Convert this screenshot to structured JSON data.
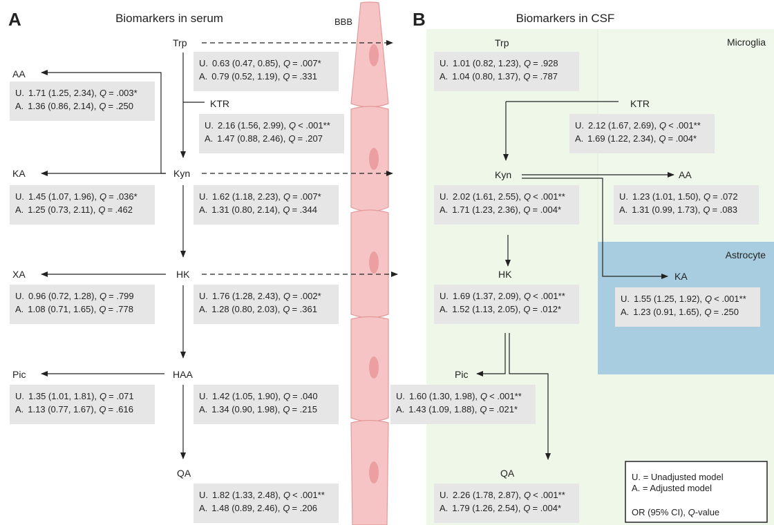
{
  "panel_a": {
    "letter": "A",
    "title": "Biomarkers in serum",
    "barrier": "BBB",
    "nodes": [
      {
        "label": "Trp",
        "stats": [
          {
            "model": "U.",
            "estimate": "0.63 (0.47, 0.85),",
            "q_symbol": "Q",
            "q": "= .007*"
          },
          {
            "model": "A.",
            "estimate": "0.79 (0.52, 1.19),",
            "q_symbol": "Q",
            "q": "= .331"
          }
        ]
      },
      {
        "label": "AA",
        "stats": [
          {
            "model": "U.",
            "estimate": "1.71 (1.25, 2.34),",
            "q_symbol": "Q",
            "q": "= .003*"
          },
          {
            "model": "A.",
            "estimate": "1.36 (0.86, 2.14),",
            "q_symbol": "Q",
            "q": "= .250"
          }
        ]
      },
      {
        "label": "KTR",
        "stats": [
          {
            "model": "U.",
            "estimate": "2.16 (1.56, 2.99),",
            "q_symbol": "Q",
            "q": "< .001**"
          },
          {
            "model": "A.",
            "estimate": "1.47 (0.88, 2.46),",
            "q_symbol": "Q",
            "q": "= .207"
          }
        ]
      },
      {
        "label": "Kyn",
        "stats": [
          {
            "model": "U.",
            "estimate": "1.62 (1.18, 2.23),",
            "q_symbol": "Q",
            "q": "= .007*"
          },
          {
            "model": "A.",
            "estimate": "1.31 (0.80, 2.14),",
            "q_symbol": "Q",
            "q": "= .344"
          }
        ]
      },
      {
        "label": "KA",
        "stats": [
          {
            "model": "U.",
            "estimate": "1.45 (1.07, 1.96),",
            "q_symbol": "Q",
            "q": "= .036*"
          },
          {
            "model": "A.",
            "estimate": "1.25 (0.73, 2.11),",
            "q_symbol": "Q",
            "q": "= .462"
          }
        ]
      },
      {
        "label": "HK",
        "stats": [
          {
            "model": "U.",
            "estimate": "1.76 (1.28, 2.43),",
            "q_symbol": "Q",
            "q": "= .002*"
          },
          {
            "model": "A.",
            "estimate": "1.28 (0.80, 2.03),",
            "q_symbol": "Q",
            "q": "= .361"
          }
        ]
      },
      {
        "label": "XA",
        "stats": [
          {
            "model": "U.",
            "estimate": "0.96 (0.72, 1.28),",
            "q_symbol": "Q",
            "q": "= .799"
          },
          {
            "model": "A.",
            "estimate": "1.08 (0.71, 1.65),",
            "q_symbol": "Q",
            "q": "= .778"
          }
        ]
      },
      {
        "label": "HAA",
        "stats": [
          {
            "model": "U.",
            "estimate": "1.42 (1.05, 1.90),",
            "q_symbol": "Q",
            "q": "= .040"
          },
          {
            "model": "A.",
            "estimate": "1.34 (0.90, 1.98),",
            "q_symbol": "Q",
            "q": "= .215"
          }
        ]
      },
      {
        "label": "Pic",
        "stats": [
          {
            "model": "U.",
            "estimate": "1.35 (1.01, 1.81),",
            "q_symbol": "Q",
            "q": "= .071"
          },
          {
            "model": "A.",
            "estimate": "1.13 (0.77, 1.67),",
            "q_symbol": "Q",
            "q": "= .616"
          }
        ]
      },
      {
        "label": "QA",
        "stats": [
          {
            "model": "U.",
            "estimate": "1.82 (1.33, 2.48),",
            "q_symbol": "Q",
            "q": "< .001**"
          },
          {
            "model": "A.",
            "estimate": "1.48 (0.89, 2.46),",
            "q_symbol": "Q",
            "q": "= .206"
          }
        ]
      }
    ]
  },
  "panel_b": {
    "letter": "B",
    "title": "Biomarkers in CSF",
    "regions": [
      "Microglia",
      "Astrocyte"
    ],
    "nodes": [
      {
        "label": "Trp",
        "stats": [
          {
            "model": "U.",
            "estimate": "1.01 (0.82, 1.23),",
            "q_symbol": "Q",
            "q": "= .928"
          },
          {
            "model": "A.",
            "estimate": "1.04 (0.80, 1.37),",
            "q_symbol": "Q",
            "q": "= .787"
          }
        ]
      },
      {
        "label": "KTR",
        "stats": [
          {
            "model": "U.",
            "estimate": "2.12 (1.67, 2.69),",
            "q_symbol": "Q",
            "q": "< .001**"
          },
          {
            "model": "A.",
            "estimate": "1.69 (1.22, 2.34),",
            "q_symbol": "Q",
            "q": "= .004*"
          }
        ]
      },
      {
        "label": "Kyn",
        "stats": [
          {
            "model": "U.",
            "estimate": "2.02 (1.61, 2.55),",
            "q_symbol": "Q",
            "q": "< .001**"
          },
          {
            "model": "A.",
            "estimate": "1.71 (1.23, 2.36),",
            "q_symbol": "Q",
            "q": "= .004*"
          }
        ]
      },
      {
        "label": "AA",
        "stats": [
          {
            "model": "U.",
            "estimate": "1.23 (1.01, 1.50),",
            "q_symbol": "Q",
            "q": "= .072"
          },
          {
            "model": "A.",
            "estimate": "1.31 (0.99, 1.73),",
            "q_symbol": "Q",
            "q": "= .083"
          }
        ]
      },
      {
        "label": "HK",
        "stats": [
          {
            "model": "U.",
            "estimate": "1.69 (1.37, 2.09),",
            "q_symbol": "Q",
            "q": "< .001**"
          },
          {
            "model": "A.",
            "estimate": "1.52 (1.13, 2.05),",
            "q_symbol": "Q",
            "q": "= .012*"
          }
        ]
      },
      {
        "label": "KA",
        "stats": [
          {
            "model": "U.",
            "estimate": "1.55 (1.25, 1.92),",
            "q_symbol": "Q",
            "q": "< .001**"
          },
          {
            "model": "A.",
            "estimate": "1.23 (0.91, 1.65),",
            "q_symbol": "Q",
            "q": "= .250"
          }
        ]
      },
      {
        "label": "Pic",
        "stats": [
          {
            "model": "U.",
            "estimate": "1.60 (1.30, 1.98),",
            "q_symbol": "Q",
            "q": "< .001**"
          },
          {
            "model": "A.",
            "estimate": "1.43 (1.09, 1.88),",
            "q_symbol": "Q",
            "q": "= .021*"
          }
        ]
      },
      {
        "label": "QA",
        "stats": [
          {
            "model": "U.",
            "estimate": "2.26 (1.78, 2.87),",
            "q_symbol": "Q",
            "q": "< .001**"
          },
          {
            "model": "A.",
            "estimate": "1.79 (1.26, 2.54),",
            "q_symbol": "Q",
            "q": "= .004*"
          }
        ]
      }
    ]
  },
  "legend": {
    "lines": [
      "U. = Unadjusted model",
      "A. = Adjusted model"
    ],
    "note": [
      "OR (95% CI), ",
      "Q",
      "-value"
    ]
  }
}
